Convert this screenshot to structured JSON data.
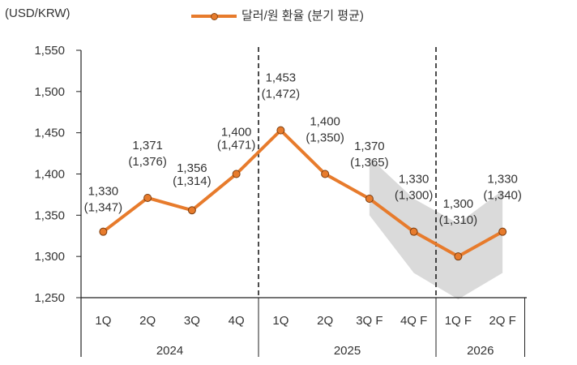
{
  "chart_data": {
    "type": "line",
    "unit_label": "(USD/KRW)",
    "legend": [
      "달러/원 환율 (분기 평균)"
    ],
    "ylim": [
      1250,
      1550
    ],
    "yticks": [
      1250,
      1300,
      1350,
      1400,
      1450,
      1500,
      1550
    ],
    "ytick_labels": [
      "1,250",
      "1,300",
      "1,350",
      "1,400",
      "1,450",
      "1,500",
      "1,550"
    ],
    "categories": [
      "1Q",
      "2Q",
      "3Q",
      "4Q",
      "1Q",
      "2Q",
      "3Q F",
      "4Q F",
      "1Q F",
      "2Q F"
    ],
    "years": [
      {
        "label": "2024",
        "start": 0,
        "end": 3
      },
      {
        "label": "2025",
        "start": 4,
        "end": 7
      },
      {
        "label": "2026",
        "start": 8,
        "end": 9
      }
    ],
    "series": [
      {
        "name": "달러/원 환율 (분기 평균)",
        "color": "#E77B2C",
        "values": [
          1330,
          1371,
          1356,
          1400,
          1453,
          1400,
          1370,
          1330,
          1300,
          1330
        ],
        "labels": [
          "1,330",
          "1,371",
          "1,356",
          "1,400",
          "1,453",
          "1,400",
          "1,370",
          "1,330",
          "1,300",
          "1,330"
        ],
        "sub_labels": [
          "(1,347)",
          "(1,376)",
          "(1,314)",
          "(1,471)",
          "(1,472)",
          "(1,350)",
          "(1,365)",
          "(1,300)",
          "(1,310)",
          "(1,340)"
        ]
      }
    ],
    "forecast_band": {
      "color": "#DADADA",
      "x_index": [
        6,
        7,
        8,
        9
      ],
      "upper": [
        1420,
        1370,
        1340,
        1380
      ],
      "lower": [
        1350,
        1280,
        1248,
        1280
      ]
    },
    "dividers_after_index": [
      3,
      7
    ],
    "grid": false
  }
}
